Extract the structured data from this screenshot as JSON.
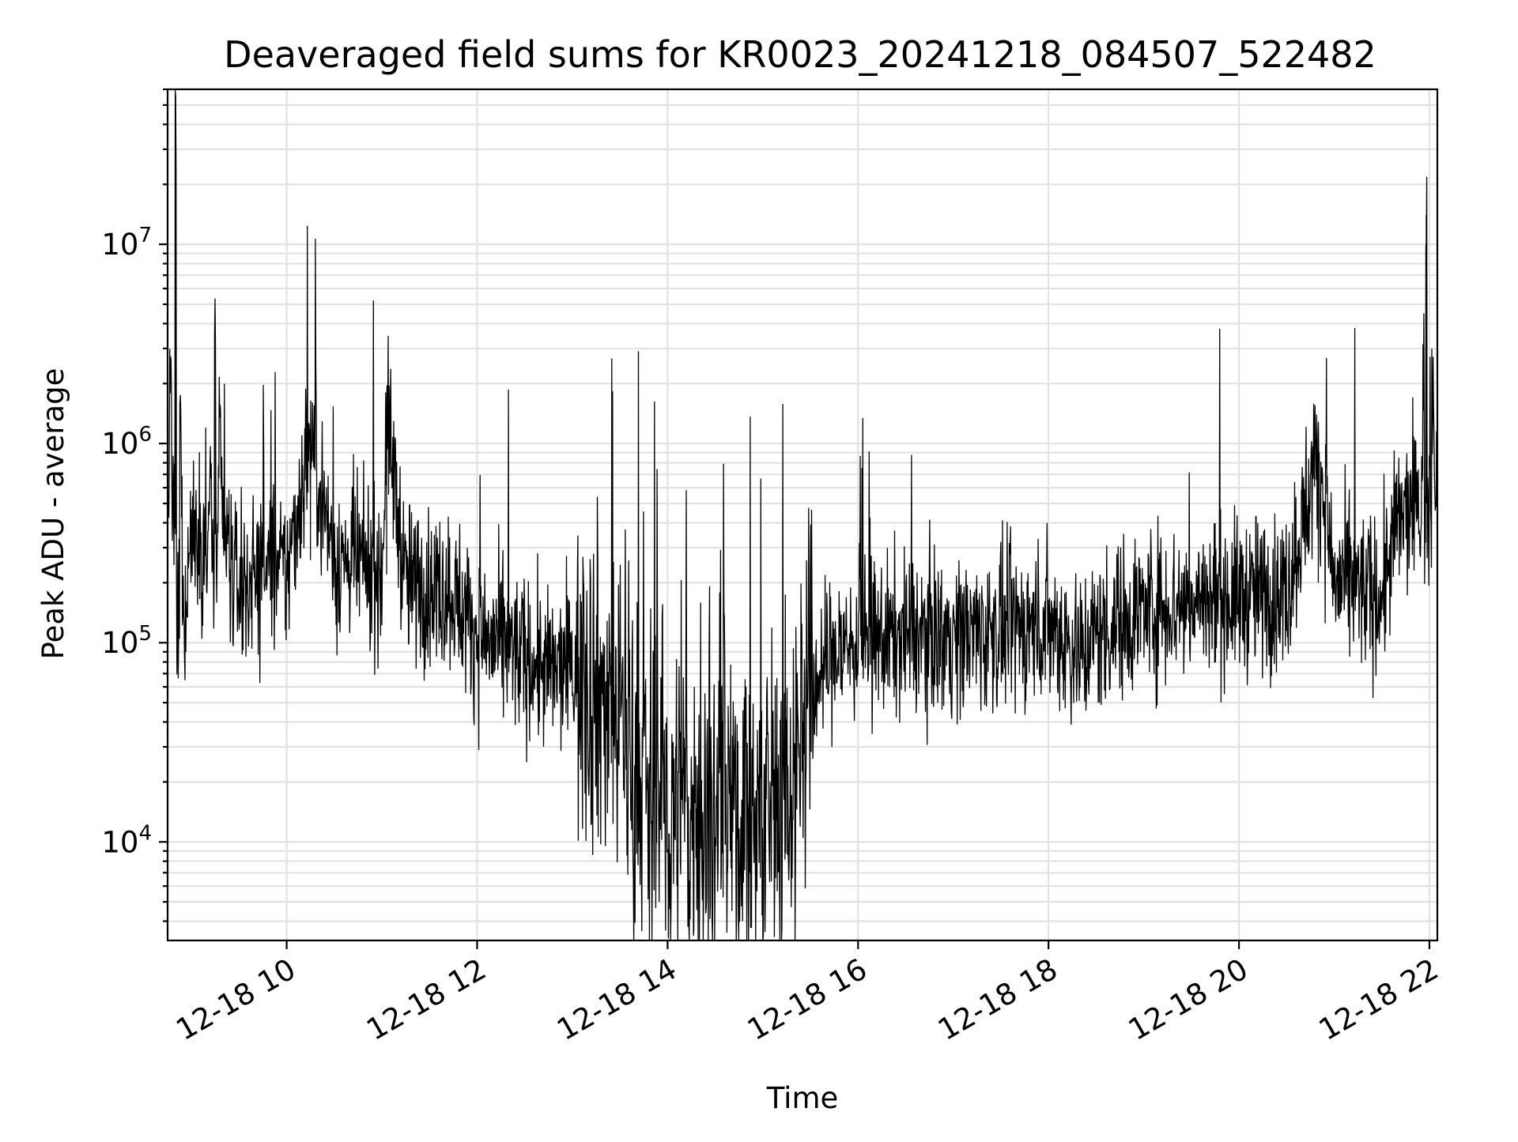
{
  "chart_data": {
    "type": "line",
    "title": "Deaveraged field sums for KR0023_20241218_084507_522482",
    "xlabel": "Time",
    "ylabel": "Peak ADU - average",
    "xlim": [
      "2024-12-18 08:45",
      "2024-12-18 22:05"
    ],
    "ylim": [
      3200,
      60000000
    ],
    "yscale": "log",
    "grid": true,
    "x_ticks": [
      "12-18 10",
      "12-18 12",
      "12-18 14",
      "12-18 16",
      "12-18 18",
      "12-18 20",
      "12-18 22"
    ],
    "y_ticks": [
      {
        "base": "10",
        "exp": "4",
        "value": 10000
      },
      {
        "base": "10",
        "exp": "5",
        "value": 100000
      },
      {
        "base": "10",
        "exp": "6",
        "value": 1000000
      },
      {
        "base": "10",
        "exp": "7",
        "value": 10000000
      }
    ],
    "series": [
      {
        "color": "#000000",
        "points": [
          [
            "2024-12-18 08:45",
            350000
          ],
          [
            "2024-12-18 08:50",
            40000000
          ],
          [
            "2024-12-18 08:55",
            120000
          ],
          [
            "2024-12-18 09:00",
            400000
          ],
          [
            "2024-12-18 09:10",
            250000
          ],
          [
            "2024-12-18 09:15",
            2800000
          ],
          [
            "2024-12-18 09:20",
            350000
          ],
          [
            "2024-12-18 09:30",
            180000
          ],
          [
            "2024-12-18 09:45",
            250000
          ],
          [
            "2024-12-18 10:00",
            220000
          ],
          [
            "2024-12-18 10:15",
            1100000
          ],
          [
            "2024-12-18 10:30",
            260000
          ],
          [
            "2024-12-18 10:45",
            250000
          ],
          [
            "2024-12-18 11:00",
            220000
          ],
          [
            "2024-12-18 11:03",
            1400000
          ],
          [
            "2024-12-18 11:15",
            200000
          ],
          [
            "2024-12-18 11:30",
            190000
          ],
          [
            "2024-12-18 11:45",
            180000
          ],
          [
            "2024-12-18 12:00",
            110000
          ],
          [
            "2024-12-18 12:15",
            95000
          ],
          [
            "2024-12-18 12:30",
            85000
          ],
          [
            "2024-12-18 12:45",
            70000
          ],
          [
            "2024-12-18 13:00",
            75000
          ],
          [
            "2024-12-18 13:15",
            60000
          ],
          [
            "2024-12-18 13:30",
            45000
          ],
          [
            "2024-12-18 13:40",
            25000
          ],
          [
            "2024-12-18 13:50",
            16000
          ],
          [
            "2024-12-18 14:00",
            14000
          ],
          [
            "2024-12-18 14:15",
            13000
          ],
          [
            "2024-12-18 14:30",
            12000
          ],
          [
            "2024-12-18 14:45",
            13000
          ],
          [
            "2024-12-18 15:00",
            14000
          ],
          [
            "2024-12-18 15:15",
            18000
          ],
          [
            "2024-12-18 15:30",
            60000
          ],
          [
            "2024-12-18 15:45",
            90000
          ],
          [
            "2024-12-18 16:00",
            100000
          ],
          [
            "2024-12-18 16:30",
            110000
          ],
          [
            "2024-12-18 17:00",
            110000
          ],
          [
            "2024-12-18 17:30",
            115000
          ],
          [
            "2024-12-18 18:00",
            125000
          ],
          [
            "2024-12-18 18:20",
            90000
          ],
          [
            "2024-12-18 18:30",
            110000
          ],
          [
            "2024-12-18 19:00",
            150000
          ],
          [
            "2024-12-18 19:30",
            160000
          ],
          [
            "2024-12-18 20:00",
            170000
          ],
          [
            "2024-12-18 20:30",
            180000
          ],
          [
            "2024-12-18 20:50",
            900000
          ],
          [
            "2024-12-18 21:00",
            200000
          ],
          [
            "2024-12-18 21:30",
            170000
          ],
          [
            "2024-12-18 21:40",
            400000
          ],
          [
            "2024-12-18 21:55",
            500000
          ],
          [
            "2024-12-18 21:58",
            14000000
          ],
          [
            "2024-12-18 22:05",
            450000
          ]
        ]
      }
    ]
  }
}
